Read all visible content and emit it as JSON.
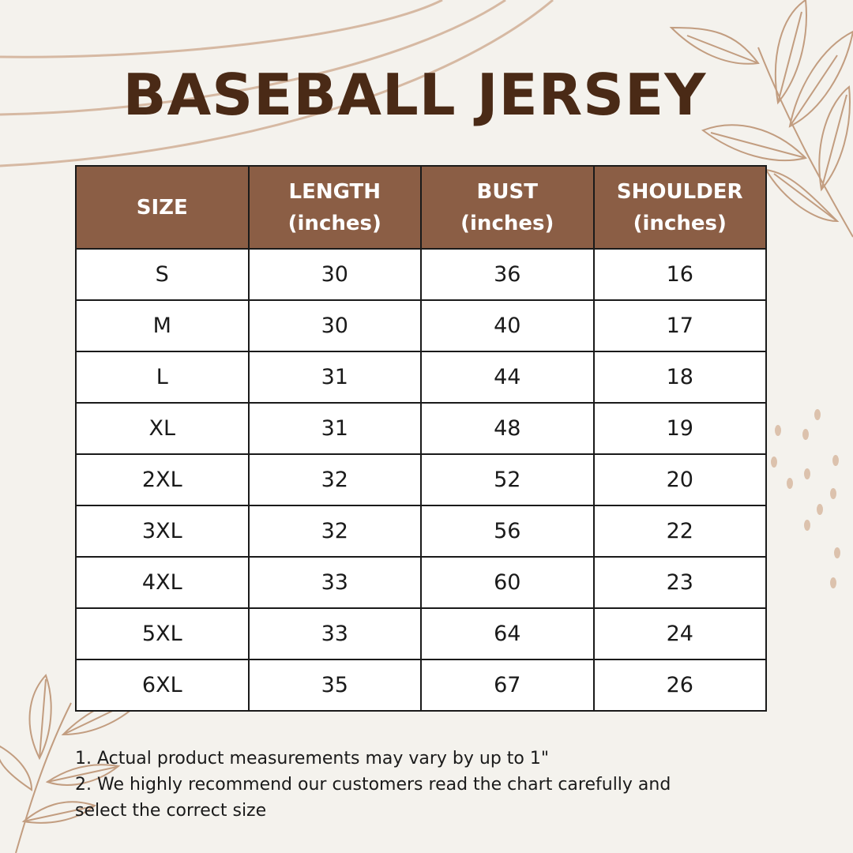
{
  "title": "BASEBALL JERSEY",
  "colors": {
    "background": "#f4f2ed",
    "title": "#4a2a16",
    "header_fill": "#8b5e45",
    "header_text": "#ffffff",
    "decoration": "#c9a58a"
  },
  "table": {
    "headers": [
      {
        "line1": "SIZE",
        "line2": ""
      },
      {
        "line1": "LENGTH",
        "line2": "(inches)"
      },
      {
        "line1": "BUST",
        "line2": "(inches)"
      },
      {
        "line1": "SHOULDER",
        "line2": "(inches)"
      }
    ],
    "rows": [
      [
        "S",
        "30",
        "36",
        "16"
      ],
      [
        "M",
        "30",
        "40",
        "17"
      ],
      [
        "L",
        "31",
        "44",
        "18"
      ],
      [
        "XL",
        "31",
        "48",
        "19"
      ],
      [
        "2XL",
        "32",
        "52",
        "20"
      ],
      [
        "3XL",
        "32",
        "56",
        "22"
      ],
      [
        "4XL",
        "33",
        "60",
        "23"
      ],
      [
        "5XL",
        "33",
        "64",
        "24"
      ],
      [
        "6XL",
        "35",
        "67",
        "26"
      ]
    ]
  },
  "notes": {
    "line1": "1. Actual product measurements may vary by up to 1\"",
    "line2": "2. We highly recommend our customers read the chart carefully and",
    "line3": "select the correct size"
  },
  "decorations": [
    "leaf-branch-icon",
    "curved-lines",
    "dot-pattern"
  ]
}
